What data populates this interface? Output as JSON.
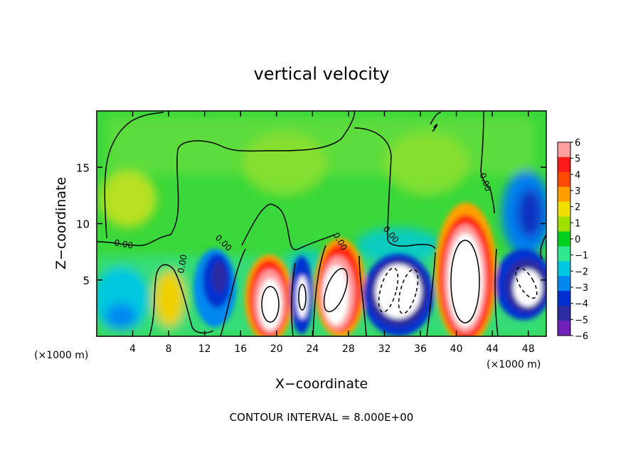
{
  "chart_data": {
    "type": "heatmap",
    "title": "vertical velocity",
    "xlabel": "X−coordinate",
    "ylabel": "Z−coordinate",
    "x_unit_left": "(×1000 m)",
    "x_unit_right": "(×1000 m)",
    "footer": "CONTOUR INTERVAL = 8.000E+00",
    "xlim": [
      0,
      50
    ],
    "ylim": [
      0,
      20
    ],
    "x_ticks": [
      4,
      8,
      12,
      16,
      20,
      24,
      28,
      32,
      36,
      40,
      44,
      48
    ],
    "y_ticks": [
      5,
      10,
      15
    ],
    "colorbar": {
      "min": -6,
      "max": 6,
      "levels": [
        6,
        5,
        4,
        3,
        2,
        1,
        0,
        -1,
        -2,
        -3,
        -4,
        -5,
        -6
      ],
      "labels": [
        "6",
        "5",
        "4",
        "3",
        "2",
        "1",
        "0",
        "−1",
        "−2",
        "−3",
        "−4",
        "−5",
        "−6"
      ],
      "colors": [
        "#ff9fa0",
        "#ff1a1a",
        "#ff4a00",
        "#ffa000",
        "#f0e000",
        "#a0e000",
        "#00d020",
        "#30e890",
        "#00c8e0",
        "#0088f0",
        "#0030d0",
        "#2c2ca0",
        "#7020b8"
      ]
    },
    "contour_labels": [
      "0.00",
      "0.00",
      "0.00",
      "0.00",
      "0.00",
      "0.00"
    ],
    "features": [
      {
        "x": 2.5,
        "z": 2.5,
        "w": -2
      },
      {
        "x": 3.5,
        "z": 12,
        "w": 1
      },
      {
        "x": 7.5,
        "z": 3,
        "w": 2
      },
      {
        "x": 14,
        "z": 5,
        "w": -5
      },
      {
        "x": 18.5,
        "z": 3.5,
        "w": 6
      },
      {
        "x": 22.5,
        "z": 4,
        "w": -5
      },
      {
        "x": 26,
        "z": 4.5,
        "w": 6
      },
      {
        "x": 33.5,
        "z": 4.5,
        "w": -6
      },
      {
        "x": 40.5,
        "z": 5.5,
        "w": 6
      },
      {
        "x": 48,
        "z": 5,
        "w": -6
      }
    ]
  }
}
